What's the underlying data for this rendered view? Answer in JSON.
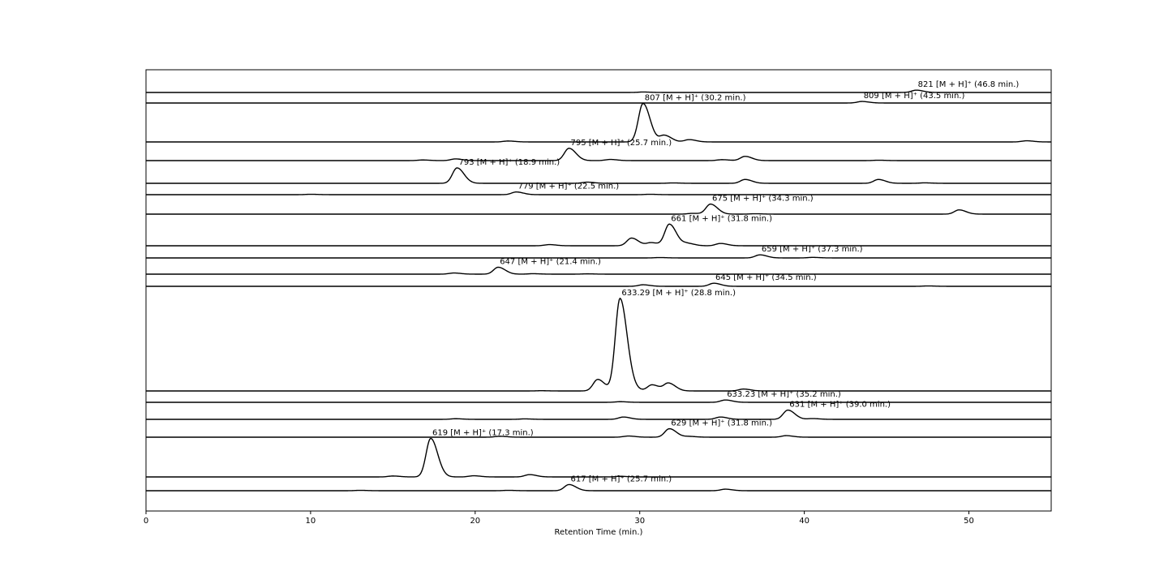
{
  "chart_data": {
    "type": "line",
    "title": "",
    "xlabel": "Retention Time (min.)",
    "ylabel": "",
    "xlim": [
      0,
      55
    ],
    "xticks": [
      0,
      10,
      20,
      30,
      40,
      50
    ],
    "grid": false,
    "legend": "none",
    "line_color": "#000000",
    "series": [
      {
        "mass": "821",
        "rt": 46.8,
        "label_suffix": " [M + H]⁺  (46.8 min.)",
        "peaks": [
          [
            46.8,
            0.3
          ],
          [
            30.2,
            0.06
          ]
        ]
      },
      {
        "mass": "809",
        "rt": 43.5,
        "label_suffix": " [M + H]⁺  (43.5 min.)",
        "peaks": [
          [
            43.5,
            0.2
          ]
        ]
      },
      {
        "mass": "807",
        "rt": 30.2,
        "label_suffix": " [M + H]⁺  (30.2 min.)",
        "peaks": [
          [
            30.2,
            5.0
          ],
          [
            31.5,
            0.85
          ],
          [
            33.0,
            0.3
          ],
          [
            22.0,
            0.12
          ],
          [
            53.5,
            0.15
          ]
        ]
      },
      {
        "mass": "795",
        "rt": 25.7,
        "label_suffix": " [M + H]⁺  (25.7 min.)",
        "peaks": [
          [
            25.7,
            1.6
          ],
          [
            36.4,
            0.55
          ],
          [
            18.8,
            0.22
          ],
          [
            16.8,
            0.08
          ],
          [
            28.2,
            0.15
          ],
          [
            35.0,
            0.12
          ],
          [
            44.5,
            0.05
          ]
        ]
      },
      {
        "mass": "793",
        "rt": 18.9,
        "label_suffix": " [M + H]⁺  (18.9 min.)",
        "peaks": [
          [
            18.9,
            2.0
          ],
          [
            36.4,
            0.5
          ],
          [
            44.5,
            0.5
          ],
          [
            26.8,
            0.15
          ],
          [
            47.3,
            0.06
          ],
          [
            32.0,
            0.05
          ]
        ]
      },
      {
        "mass": "779",
        "rt": 22.5,
        "label_suffix": " [M + H]⁺  (22.5 min.)",
        "peaks": [
          [
            22.5,
            0.35
          ],
          [
            10.0,
            0.05
          ],
          [
            30.6,
            0.05
          ]
        ]
      },
      {
        "mass": "675",
        "rt": 34.3,
        "label_suffix": " [M + H]⁺  (34.3 min.)",
        "peaks": [
          [
            34.3,
            1.3
          ],
          [
            49.4,
            0.55
          ],
          [
            33.2,
            0.1
          ],
          [
            37.0,
            0.05
          ]
        ]
      },
      {
        "mass": "661",
        "rt": 31.8,
        "label_suffix": " [M + H]⁺  (31.8 min.)",
        "peaks": [
          [
            31.8,
            2.8
          ],
          [
            29.5,
            1.0
          ],
          [
            30.7,
            0.4
          ],
          [
            32.9,
            0.3
          ],
          [
            34.9,
            0.3
          ],
          [
            24.5,
            0.15
          ]
        ]
      },
      {
        "mass": "659",
        "rt": 37.3,
        "label_suffix": " [M + H]⁺  (37.3 min.)",
        "peaks": [
          [
            37.3,
            0.4
          ],
          [
            40.5,
            0.07
          ],
          [
            31.2,
            0.05
          ]
        ]
      },
      {
        "mass": "647",
        "rt": 21.4,
        "label_suffix": " [M + H]⁺  (21.4 min.)",
        "peaks": [
          [
            21.4,
            0.9
          ],
          [
            18.7,
            0.15
          ],
          [
            23.5,
            0.06
          ],
          [
            26.8,
            0.04
          ]
        ]
      },
      {
        "mass": "645",
        "rt": 34.5,
        "label_suffix": " [M + H]⁺  (34.5 min.)",
        "peaks": [
          [
            34.5,
            0.4
          ],
          [
            30.2,
            0.2
          ],
          [
            47.5,
            0.05
          ]
        ]
      },
      {
        "mass": "633.29",
        "rt": 28.8,
        "label_suffix": " [M + H]⁺  (28.8 min.)",
        "peaks": [
          [
            28.8,
            12.0
          ],
          [
            27.45,
            1.5
          ],
          [
            30.75,
            0.8
          ],
          [
            31.75,
            1.0
          ],
          [
            29.5,
            0.3
          ],
          [
            36.3,
            0.25
          ],
          [
            24.0,
            0.03
          ]
        ]
      },
      {
        "mass": "633.23",
        "rt": 35.2,
        "label_suffix": " [M + H]⁺  (35.2 min.)",
        "peaks": [
          [
            35.2,
            0.3
          ],
          [
            28.8,
            0.08
          ]
        ]
      },
      {
        "mass": "631",
        "rt": 39.0,
        "label_suffix": " [M + H]⁺  (39.0 min.)",
        "peaks": [
          [
            39.0,
            1.2
          ],
          [
            34.9,
            0.3
          ],
          [
            29.0,
            0.3
          ],
          [
            18.8,
            0.08
          ],
          [
            23.0,
            0.06
          ],
          [
            40.5,
            0.1
          ]
        ]
      },
      {
        "mass": "629",
        "rt": 31.8,
        "label_suffix": " [M + H]⁺  (31.8 min.)",
        "peaks": [
          [
            31.8,
            1.1
          ],
          [
            29.3,
            0.15
          ],
          [
            38.9,
            0.2
          ],
          [
            21.5,
            0.12
          ],
          [
            33.0,
            0.1
          ]
        ]
      },
      {
        "mass": "619",
        "rt": 17.3,
        "label_suffix": " [M + H]⁺  (17.3 min.)",
        "peaks": [
          [
            17.3,
            5.0
          ],
          [
            23.3,
            0.3
          ],
          [
            19.9,
            0.15
          ],
          [
            15.0,
            0.12
          ],
          [
            28.8,
            0.08
          ]
        ]
      },
      {
        "mass": "617",
        "rt": 25.7,
        "label_suffix": " [M + H]⁺  (25.7 min.)",
        "peaks": [
          [
            25.7,
            0.8
          ],
          [
            35.2,
            0.2
          ],
          [
            13.0,
            0.05
          ],
          [
            22.0,
            0.05
          ]
        ]
      }
    ]
  }
}
